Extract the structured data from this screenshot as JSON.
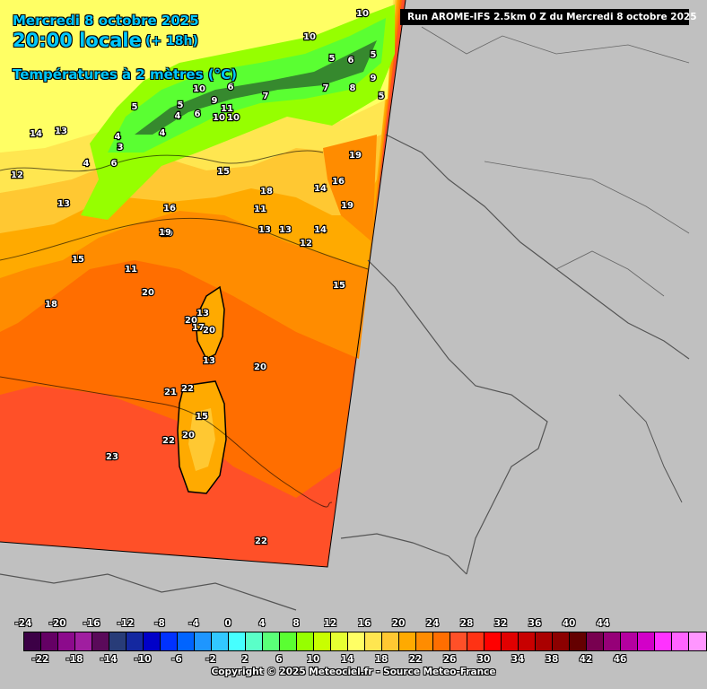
{
  "header": {
    "date": "Mercredi 8 octobre 2025",
    "time": "20:00 locale",
    "lead": "(+ 18h)",
    "variable": "Températures à 2 mètres (°C)"
  },
  "run_banner": "Run AROME-IFS 2.5km 0 Z du Mercredi 8 octobre 2025",
  "legend": {
    "colors": [
      "#3c0046",
      "#640064",
      "#8c0a8c",
      "#a01ea0",
      "#5a0a5a",
      "#283c78",
      "#1428a0",
      "#0000c8",
      "#0032ff",
      "#0064ff",
      "#1e96ff",
      "#32c8ff",
      "#46ffff",
      "#5affc8",
      "#5aff78",
      "#5aff32",
      "#96ff00",
      "#c8ff00",
      "#e6ff32",
      "#ffff64",
      "#ffe650",
      "#ffc832",
      "#ffaa00",
      "#ff8c00",
      "#ff6e00",
      "#ff5028",
      "#ff3214",
      "#ff0000",
      "#e10000",
      "#c80000",
      "#aa0000",
      "#8c0000",
      "#640000",
      "#780050",
      "#960078",
      "#b400a0",
      "#d200c8",
      "#ff32ff",
      "#ff64ff",
      "#ff96ff"
    ],
    "top_ticks": [
      "-24",
      "-20",
      "-16",
      "-12",
      "-8",
      "-4",
      "0",
      "4",
      "8",
      "12",
      "16",
      "20",
      "24",
      "28",
      "32",
      "36",
      "40",
      "44"
    ],
    "bottom_ticks": [
      "-22",
      "-18",
      "-14",
      "-10",
      "-6",
      "-2",
      "2",
      "6",
      "10",
      "14",
      "18",
      "22",
      "26",
      "30",
      "34",
      "38",
      "42",
      "46"
    ]
  },
  "temperature_labels": [
    "10",
    "10",
    "5",
    "5",
    "6",
    "7",
    "8",
    "9",
    "5",
    "4",
    "6",
    "3",
    "4",
    "5",
    "6",
    "10",
    "11",
    "10",
    "10",
    "9",
    "7",
    "13",
    "12",
    "13",
    "14",
    "6",
    "4",
    "4",
    "5",
    "19",
    "19",
    "16",
    "14",
    "15",
    "18",
    "11",
    "13",
    "13",
    "12",
    "16",
    "19",
    "14",
    "15",
    "11",
    "19",
    "15",
    "13",
    "20",
    "18",
    "20",
    "17",
    "20",
    "13",
    "20",
    "21",
    "22",
    "15",
    "20",
    "22",
    "23",
    "22"
  ],
  "footer": "Copyright © 2025 Meteociel.fr - Source Meteo-France"
}
